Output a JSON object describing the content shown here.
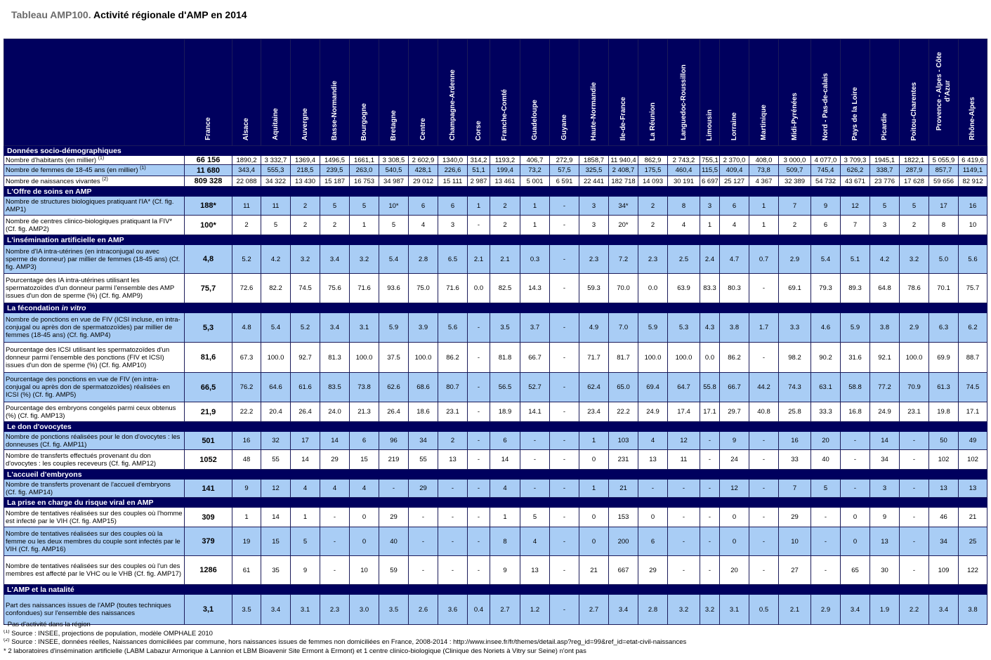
{
  "header": {
    "prefix": "Tableau AMP100.",
    "title": "Activité régionale d'AMP en 2014"
  },
  "table": {
    "columns": [
      "France",
      "Alsace",
      "Aquitaine",
      "Auvergne",
      "Basse-Normandie",
      "Bourgogne",
      "Bretagne",
      "Centre",
      "Champagne-Ardenne",
      "Corse",
      "Franche-Comté",
      "Guadeloupe",
      "Guyane",
      "Haute-Normandie",
      "Ile-de-France",
      "La Réunion",
      "Languedoc-Roussillon",
      "Limousin",
      "Lorraine",
      "Martinique",
      "Midi-Pyrénées",
      "Nord - Pas-de-calais",
      "Pays de la Loire",
      "Picardie",
      "Poitou-Charentes",
      "Provence - Alpes - Côte d'Azur",
      "Rhône-Alpes"
    ],
    "sections": [
      {
        "title": "Données socio-démographiques",
        "rows": [
          {
            "label": "Nombre d'habitants (en millier)",
            "note": "(1)",
            "values": [
              "66 156",
              "1890,2",
              "3 332,7",
              "1369,4",
              "1496,5",
              "1661,1",
              "3 308,5",
              "2 602,9",
              "1340,0",
              "314,2",
              "1193,2",
              "406,7",
              "272,9",
              "1858,7",
              "11 940,4",
              "862,9",
              "2 743,2",
              "755,1",
              "2 370,0",
              "408,0",
              "3 000,0",
              "4 077,0",
              "3 709,3",
              "1945,1",
              "1822,1",
              "5 055,9",
              "6 419,6"
            ]
          },
          {
            "label": "Nombre de femmes de 18-45 ans (en millier)",
            "note": "(1)",
            "values": [
              "11 680",
              "343,4",
              "555,3",
              "218,5",
              "239,5",
              "263,0",
              "540,5",
              "428,1",
              "226,6",
              "51,1",
              "199,4",
              "73,2",
              "57,5",
              "325,5",
              "2 408,7",
              "175,5",
              "460,4",
              "115,5",
              "409,4",
              "73,8",
              "509,7",
              "745,4",
              "626,2",
              "338,7",
              "287,9",
              "857,7",
              "1149,1"
            ]
          },
          {
            "label": "Nombre de naissances vivantes",
            "note": "(2)",
            "values": [
              "809 328",
              "22 088",
              "34 322",
              "13 430",
              "15 187",
              "16 753",
              "34 987",
              "29 012",
              "15 111",
              "2 987",
              "13 461",
              "5 001",
              "6 591",
              "22 441",
              "182 718",
              "14 093",
              "30 191",
              "6 697",
              "25 127",
              "4 367",
              "32 389",
              "54 732",
              "43 671",
              "23 776",
              "17 628",
              "59 656",
              "82 912"
            ]
          }
        ]
      },
      {
        "title": "L'Offre de soins en AMP",
        "rows": [
          {
            "label": "Nombre de structures biologiques pratiquant l'IA* (Cf. fig. AMP1)",
            "values": [
              "188*",
              "11",
              "11",
              "2",
              "5",
              "5",
              "10*",
              "6",
              "6",
              "1",
              "2",
              "1",
              "-",
              "3",
              "34*",
              "2",
              "8",
              "3",
              "6",
              "1",
              "7",
              "9",
              "12",
              "5",
              "5",
              "17",
              "16"
            ]
          },
          {
            "label": "Nombre de centres clinico-biologiques pratiquant la FIV* (Cf. fig. AMP2)",
            "values": [
              "100*",
              "2",
              "5",
              "2",
              "2",
              "1",
              "5",
              "4",
              "3",
              "-",
              "2",
              "1",
              "-",
              "3",
              "20*",
              "2",
              "4",
              "1",
              "4",
              "1",
              "2",
              "6",
              "7",
              "3",
              "2",
              "8",
              "10"
            ]
          }
        ]
      },
      {
        "title": "L'insémination artificielle en AMP",
        "rows": [
          {
            "label": "Nombre d'IA intra-utérines (en intraconjugal ou avec sperme de donneur) par millier de femmes (18-45 ans) (Cf. fig. AMP3)",
            "values": [
              "4,8",
              "5.2",
              "4.2",
              "3.2",
              "3.4",
              "3.2",
              "5.4",
              "2.8",
              "6.5",
              "2.1",
              "2.1",
              "0.3",
              "-",
              "2.3",
              "7.2",
              "2.3",
              "2.5",
              "2.4",
              "4.7",
              "0.7",
              "2.9",
              "5.4",
              "5.1",
              "4.2",
              "3.2",
              "5.0",
              "5.6"
            ]
          },
          {
            "label": "Pourcentage des IA intra-utérines utilisant les spermatozoïdes d'un donneur parmi l'ensemble des AMP issues d'un don de sperme (%) (Cf. fig. AMP9)",
            "values": [
              "75,7",
              "72.6",
              "82.2",
              "74.5",
              "75.6",
              "71.6",
              "93.6",
              "75.0",
              "71.6",
              "0.0",
              "82.5",
              "14.3",
              "-",
              "59.3",
              "70.0",
              "0.0",
              "63.9",
              "83.3",
              "80.3",
              "-",
              "69.1",
              "79.3",
              "89.3",
              "64.8",
              "78.6",
              "70.1",
              "75.7"
            ]
          }
        ]
      },
      {
        "title": "La fécondation",
        "title_italic": "in vitro",
        "rows": [
          {
            "label": "Nombre de ponctions en vue de FIV (ICSI incluse, en intra-conjugal ou après don de spermatozoïdes) par millier de femmes (18-45 ans) (Cf. fig. AMP4)",
            "values": [
              "5,3",
              "4.8",
              "5.4",
              "5.2",
              "3.4",
              "3.1",
              "5.9",
              "3.9",
              "5.6",
              "-",
              "3.5",
              "3.7",
              "-",
              "4.9",
              "7.0",
              "5.9",
              "5.3",
              "4.3",
              "3.8",
              "1.7",
              "3.3",
              "4.6",
              "5.9",
              "3.8",
              "2.9",
              "6.3",
              "6.2"
            ]
          },
          {
            "label": "Pourcentage des ICSI utilisant les spermatozoïdes d'un donneur parmi l'ensemble des ponctions (FIV et ICSI) issues d'un don de sperme (%) (Cf. fig. AMP10)",
            "values": [
              "81,6",
              "67.3",
              "100.0",
              "92.7",
              "81.3",
              "100.0",
              "37.5",
              "100.0",
              "86.2",
              "-",
              "81.8",
              "66.7",
              "-",
              "71.7",
              "81.7",
              "100.0",
              "100.0",
              "0.0",
              "86.2",
              "-",
              "98.2",
              "90.2",
              "31.6",
              "92.1",
              "100.0",
              "69.9",
              "88.7"
            ]
          },
          {
            "label": "Pourcentage des ponctions en vue de FIV (en intra-conjugal ou après don de spermatozoïdes) réalisées en ICSI (%) (Cf. fig. AMP5)",
            "values": [
              "66,5",
              "76.2",
              "64.6",
              "61.6",
              "83.5",
              "73.8",
              "62.6",
              "68.6",
              "80.7",
              "-",
              "56.5",
              "52.7",
              "-",
              "62.4",
              "65.0",
              "69.4",
              "64.7",
              "55.8",
              "66.7",
              "44.2",
              "74.3",
              "63.1",
              "58.8",
              "77.2",
              "70.9",
              "61.3",
              "74.5"
            ]
          },
          {
            "label": "Pourcentage des embryons congelés parmi ceux obtenus (%) (Cf. fig. AMP13)",
            "values": [
              "21,9",
              "22.2",
              "20.4",
              "26.4",
              "24.0",
              "21.3",
              "26.4",
              "18.6",
              "23.1",
              "-",
              "18.9",
              "14.1",
              "-",
              "23.4",
              "22.2",
              "24.9",
              "17.4",
              "17.1",
              "29.7",
              "40.8",
              "25.8",
              "33.3",
              "16.8",
              "24.9",
              "23.1",
              "19.8",
              "17.1"
            ]
          }
        ]
      },
      {
        "title": "Le don d'ovocytes",
        "rows": [
          {
            "label": "Nombre de ponctions réalisées pour le don d'ovocytes : les donneuses (Cf. fig. AMP11)",
            "values": [
              "501",
              "16",
              "32",
              "17",
              "14",
              "6",
              "96",
              "34",
              "2",
              "-",
              "6",
              "-",
              "-",
              "1",
              "103",
              "4",
              "12",
              "-",
              "9",
              "-",
              "16",
              "20",
              "-",
              "14",
              "-",
              "50",
              "49"
            ]
          },
          {
            "label": "Nombre de transferts effectués provenant du don d'ovocytes : les couples receveurs (Cf. fig. AMP12)",
            "values": [
              "1052",
              "48",
              "55",
              "14",
              "29",
              "15",
              "219",
              "55",
              "13",
              "-",
              "14",
              "-",
              "-",
              "0",
              "231",
              "13",
              "11",
              "-",
              "24",
              "-",
              "33",
              "40",
              "-",
              "34",
              "-",
              "102",
              "102"
            ]
          }
        ]
      },
      {
        "title": "L'accueil d'embryons",
        "rows": [
          {
            "label": "Nombre de transferts provenant de l'accueil d'embryons (Cf. fig. AMP14)",
            "values": [
              "141",
              "9",
              "12",
              "4",
              "4",
              "4",
              "-",
              "29",
              "-",
              "-",
              "4",
              "-",
              "-",
              "1",
              "21",
              "-",
              "-",
              "-",
              "12",
              "-",
              "7",
              "5",
              "-",
              "3",
              "-",
              "13",
              "13"
            ]
          }
        ]
      },
      {
        "title": "La prise en charge du risque viral en AMP",
        "rows": [
          {
            "label": "Nombre de tentatives réalisées sur des couples où l'homme est infecté par le VIH (Cf. fig. AMP15)",
            "values": [
              "309",
              "1",
              "14",
              "1",
              "-",
              "0",
              "29",
              "-",
              "-",
              "-",
              "1",
              "5",
              "-",
              "0",
              "153",
              "0",
              "-",
              "-",
              "0",
              "-",
              "29",
              "-",
              "0",
              "9",
              "-",
              "46",
              "21"
            ]
          },
          {
            "label": "Nombre de tentatives réalisées sur des couples où la femme ou les deux membres du couple sont infectés par le VIH (Cf. fig. AMP16)",
            "values": [
              "379",
              "19",
              "15",
              "5",
              "-",
              "0",
              "40",
              "-",
              "-",
              "-",
              "8",
              "4",
              "-",
              "0",
              "200",
              "6",
              "-",
              "-",
              "0",
              "-",
              "10",
              "-",
              "0",
              "13",
              "-",
              "34",
              "25"
            ]
          },
          {
            "label": "Nombre de tentatives réalisées sur des couples où l'un des membres est affecté par le VHC ou le VHB (Cf. fig. AMP17)",
            "values": [
              "1286",
              "61",
              "35",
              "9",
              "-",
              "10",
              "59",
              "-",
              "-",
              "-",
              "9",
              "13",
              "-",
              "21",
              "667",
              "29",
              "-",
              "-",
              "20",
              "-",
              "27",
              "-",
              "65",
              "30",
              "-",
              "109",
              "122"
            ]
          }
        ]
      },
      {
        "title": "L'AMP et la natalité",
        "rows": [
          {
            "label": "Part des naissances issues de l'AMP (toutes techniques confondues) sur l'ensemble des naissances",
            "values": [
              "3,1",
              "3.5",
              "3.4",
              "3.1",
              "2.3",
              "3.0",
              "3.5",
              "2.6",
              "3.6",
              "0.4",
              "2.7",
              "1.2",
              "-",
              "2.7",
              "3.4",
              "2.8",
              "3.2",
              "3.2",
              "3.1",
              "0.5",
              "2.1",
              "2.9",
              "3.4",
              "1.9",
              "2.2",
              "3.4",
              "3.8"
            ]
          }
        ]
      }
    ]
  },
  "footnotes": [
    {
      "text": "- Pas d'activité dans la région"
    },
    {
      "marker": "(1)",
      "text": "Source : INSEE, projections de population, modèle OMPHALE 2010"
    },
    {
      "marker": "(2)",
      "text": "Source : INSEE, données réelles, Naissances domiciliées par commune, hors naissances issues de femmes non domiciliées en France, 2008-2014 : http://www.insee.fr/fr/themes/detail.asp?reg_id=99&ref_id=etat-civil-naissances"
    },
    {
      "text": "* 2 laboratoires d'insémination artificielle (LABM Labazur Armorique à Lannion et LBM Bioavenir Site Ermont à Ermont) et 1 centre clinico-biologique (Clinique des Noriets à Vitry sur Seine) n'ont pas"
    }
  ]
}
